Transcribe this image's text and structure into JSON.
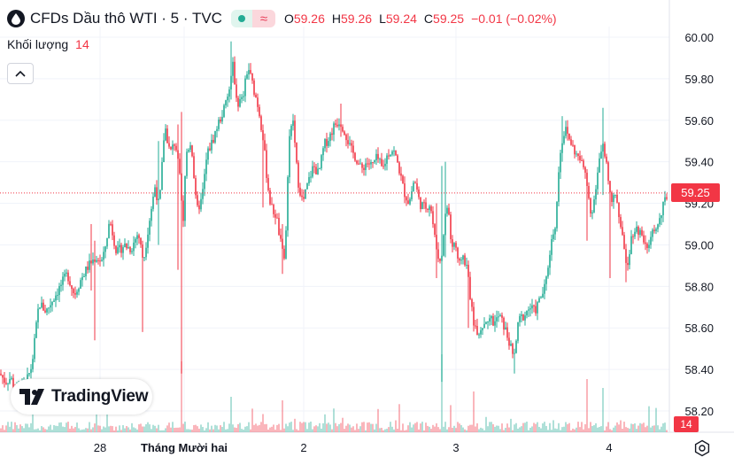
{
  "header": {
    "title": "CFDs Dầu thô WTI · 5 · TVC",
    "approx_symbol": "≈",
    "ohlc": [
      {
        "key": "O",
        "value": "59.26"
      },
      {
        "key": "H",
        "value": "59.26"
      },
      {
        "key": "L",
        "value": "59.24"
      },
      {
        "key": "C",
        "value": "59.25"
      }
    ],
    "change": "−0.01 (−0.02%)"
  },
  "volume_legend": {
    "label": "Khối lượng",
    "value": "14"
  },
  "branding": {
    "text": "TradingView"
  },
  "price_tag": "59.25",
  "volume_tag": "14",
  "colors": {
    "up": "#22ab94",
    "down": "#f23645",
    "grid": "#f0f3fa",
    "text": "#131722"
  },
  "icons": {
    "logo": "oil-drop-icon",
    "collapse": "chevron-up-icon",
    "settings": "gear-icon"
  },
  "chart_data": {
    "type": "candlestick",
    "title": "CFDs Dầu thô WTI · 5 · TVC",
    "y_ticks": [
      "60.00",
      "59.80",
      "59.60",
      "59.40",
      "59.20",
      "59.00",
      "58.80",
      "58.60",
      "58.40",
      "58.20"
    ],
    "ylim": [
      58.14,
      60.12
    ],
    "x_ticks": [
      "28",
      "Tháng Mười hai",
      "2",
      "3",
      "4"
    ],
    "last_price": 59.25,
    "grid": true,
    "price_anchors": [
      [
        0,
        58.38
      ],
      [
        6,
        58.34
      ],
      [
        12,
        58.36
      ],
      [
        18,
        58.3
      ],
      [
        24,
        58.32
      ],
      [
        30,
        58.34
      ],
      [
        36,
        58.42
      ],
      [
        44,
        58.72
      ],
      [
        52,
        58.68
      ],
      [
        60,
        58.74
      ],
      [
        68,
        58.8
      ],
      [
        76,
        58.86
      ],
      [
        84,
        58.76
      ],
      [
        92,
        58.84
      ],
      [
        100,
        58.9
      ],
      [
        108,
        58.94
      ],
      [
        116,
        58.92
      ],
      [
        124,
        59.12
      ],
      [
        132,
        58.96
      ],
      [
        140,
        59.0
      ],
      [
        148,
        58.98
      ],
      [
        156,
        59.06
      ],
      [
        162,
        58.92
      ],
      [
        168,
        59.1
      ],
      [
        175,
        59.28
      ],
      [
        180,
        59.18
      ],
      [
        186,
        59.58
      ],
      [
        192,
        59.44
      ],
      [
        198,
        59.5
      ],
      [
        203,
        59.32
      ],
      [
        207,
        59.1
      ],
      [
        210,
        59.44
      ],
      [
        216,
        59.5
      ],
      [
        222,
        59.16
      ],
      [
        228,
        59.22
      ],
      [
        234,
        59.44
      ],
      [
        240,
        59.5
      ],
      [
        246,
        59.58
      ],
      [
        252,
        59.64
      ],
      [
        258,
        59.72
      ],
      [
        263,
        59.86
      ],
      [
        268,
        59.68
      ],
      [
        274,
        59.7
      ],
      [
        280,
        59.86
      ],
      [
        286,
        59.76
      ],
      [
        292,
        59.66
      ],
      [
        297,
        59.52
      ],
      [
        302,
        59.3
      ],
      [
        306,
        59.18
      ],
      [
        312,
        59.14
      ],
      [
        318,
        58.98
      ],
      [
        322,
        58.9
      ],
      [
        326,
        59.5
      ],
      [
        331,
        59.6
      ],
      [
        336,
        59.32
      ],
      [
        342,
        59.2
      ],
      [
        348,
        59.3
      ],
      [
        354,
        59.38
      ],
      [
        360,
        59.34
      ],
      [
        366,
        59.48
      ],
      [
        372,
        59.52
      ],
      [
        378,
        59.58
      ],
      [
        384,
        59.6
      ],
      [
        390,
        59.54
      ],
      [
        396,
        59.46
      ],
      [
        402,
        59.42
      ],
      [
        408,
        59.36
      ],
      [
        414,
        59.4
      ],
      [
        420,
        59.38
      ],
      [
        426,
        59.42
      ],
      [
        432,
        59.36
      ],
      [
        438,
        59.44
      ],
      [
        444,
        59.46
      ],
      [
        450,
        59.38
      ],
      [
        456,
        59.26
      ],
      [
        462,
        59.2
      ],
      [
        468,
        59.32
      ],
      [
        474,
        59.2
      ],
      [
        480,
        59.18
      ],
      [
        486,
        59.2
      ],
      [
        492,
        59.0
      ],
      [
        498,
        58.9
      ],
      [
        502,
        59.12
      ],
      [
        506,
        59.2
      ],
      [
        510,
        58.98
      ],
      [
        514,
        59.02
      ],
      [
        518,
        58.88
      ],
      [
        522,
        58.96
      ],
      [
        528,
        58.88
      ],
      [
        534,
        58.64
      ],
      [
        540,
        58.58
      ],
      [
        546,
        58.62
      ],
      [
        552,
        58.66
      ],
      [
        558,
        58.62
      ],
      [
        564,
        58.66
      ],
      [
        570,
        58.6
      ],
      [
        576,
        58.52
      ],
      [
        580,
        58.44
      ],
      [
        586,
        58.64
      ],
      [
        592,
        58.66
      ],
      [
        598,
        58.7
      ],
      [
        604,
        58.68
      ],
      [
        610,
        58.74
      ],
      [
        616,
        58.8
      ],
      [
        622,
        59.0
      ],
      [
        628,
        59.12
      ],
      [
        632,
        59.44
      ],
      [
        638,
        59.56
      ],
      [
        644,
        59.5
      ],
      [
        650,
        59.44
      ],
      [
        656,
        59.4
      ],
      [
        662,
        59.34
      ],
      [
        668,
        59.14
      ],
      [
        674,
        59.3
      ],
      [
        680,
        59.5
      ],
      [
        684,
        59.4
      ],
      [
        688,
        59.3
      ],
      [
        692,
        59.2
      ],
      [
        696,
        59.26
      ],
      [
        700,
        59.1
      ],
      [
        704,
        59.0
      ],
      [
        708,
        58.9
      ],
      [
        714,
        59.06
      ],
      [
        720,
        59.08
      ],
      [
        726,
        59.04
      ],
      [
        732,
        59.0
      ],
      [
        738,
        59.06
      ],
      [
        744,
        59.1
      ],
      [
        750,
        59.2
      ],
      [
        754,
        59.25
      ]
    ],
    "spikes": [
      [
        104,
        59.1,
        58.78
      ],
      [
        108,
        59.02,
        58.54
      ],
      [
        162,
        59.02,
        58.58
      ],
      [
        180,
        59.5,
        59.0
      ],
      [
        202,
        59.58,
        58.88
      ],
      [
        206,
        59.64,
        58.38
      ],
      [
        262,
        59.98,
        59.7
      ],
      [
        298,
        59.58,
        59.18
      ],
      [
        320,
        59.1,
        58.86
      ],
      [
        386,
        59.68,
        59.52
      ],
      [
        494,
        59.2,
        58.84
      ],
      [
        500,
        59.38,
        58.34
      ],
      [
        504,
        59.4,
        58.94
      ],
      [
        530,
        58.92,
        58.6
      ],
      [
        582,
        58.5,
        58.38
      ],
      [
        636,
        59.62,
        59.4
      ],
      [
        664,
        59.36,
        59.02
      ],
      [
        682,
        59.66,
        59.24
      ],
      [
        690,
        59.1,
        58.84
      ],
      [
        708,
        58.96,
        58.82
      ]
    ],
    "volume_spikes": [
      [
        206,
        80
      ],
      [
        500,
        88
      ],
      [
        664,
        60
      ],
      [
        682,
        50
      ],
      [
        536,
        46
      ],
      [
        320,
        36
      ],
      [
        262,
        40
      ]
    ],
    "volume_baseline": 14
  }
}
